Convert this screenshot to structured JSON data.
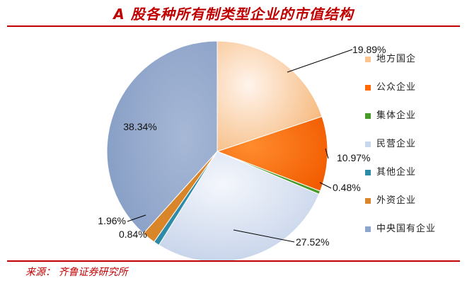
{
  "title": "A 股各种所有制类型企业的市值结构",
  "source": "来源： 齐鲁证券研究所",
  "chart_data": {
    "type": "pie",
    "title": "A 股各种所有制类型企业的市值结构",
    "legend_position": "right",
    "slices": [
      {
        "label": "地方国企",
        "value": 19.89,
        "display": "19.89%",
        "color": "#f9c48f"
      },
      {
        "label": "公众企业",
        "value": 10.97,
        "display": "10.97%",
        "color": "#ff6a00"
      },
      {
        "label": "集体企业",
        "value": 0.48,
        "display": "0.48%",
        "color": "#4a9a2a"
      },
      {
        "label": "民营企业",
        "value": 27.52,
        "display": "27.52%",
        "color": "#c9d7ee"
      },
      {
        "label": "其他企业",
        "value": 0.84,
        "display": "0.84%",
        "color": "#2e8ba8"
      },
      {
        "label": "外资企业",
        "value": 1.96,
        "display": "1.96%",
        "color": "#d9852a"
      },
      {
        "label": "中央国有企业",
        "value": 38.34,
        "display": "38.34%",
        "color": "#8fa6cc"
      }
    ]
  }
}
